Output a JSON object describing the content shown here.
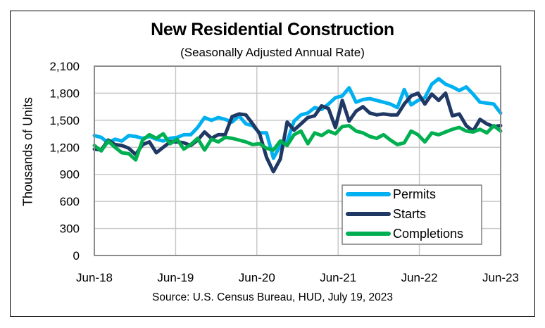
{
  "chart_data": {
    "type": "line",
    "title": "New Residential Construction",
    "subtitle": "(Seasonally Adjusted Annual Rate)",
    "xlabel": "",
    "ylabel": "Thousands of Units",
    "source": "Source:  U.S. Census Bureau, HUD, July 19, 2023",
    "ylim": [
      0,
      2100
    ],
    "yticks": [
      0,
      300,
      600,
      900,
      1200,
      1500,
      1800,
      2100
    ],
    "ytick_labels": [
      "0",
      "300",
      "600",
      "900",
      "1,200",
      "1,500",
      "1,800",
      "2,100"
    ],
    "xtick_labels": [
      "Jun-18",
      "Jun-19",
      "Jun-20",
      "Jun-21",
      "Jun-22",
      "Jun-23"
    ],
    "x_start": "Jun-2018",
    "x_end": "Jun-2023",
    "frequency": "monthly",
    "grid": true,
    "legend_position": "bottom-right",
    "series": [
      {
        "name": "Permits",
        "color": "#00B0F0",
        "values": [
          1330,
          1310,
          1250,
          1290,
          1270,
          1330,
          1320,
          1300,
          1320,
          1290,
          1270,
          1300,
          1310,
          1340,
          1340,
          1420,
          1530,
          1500,
          1530,
          1510,
          1480,
          1550,
          1460,
          1440,
          1360,
          1360,
          1080,
          1220,
          1260,
          1490,
          1560,
          1580,
          1640,
          1620,
          1680,
          1750,
          1770,
          1860,
          1700,
          1730,
          1740,
          1720,
          1700,
          1680,
          1640,
          1840,
          1670,
          1720,
          1750,
          1900,
          1960,
          1900,
          1870,
          1830,
          1870,
          1790,
          1700,
          1690,
          1680,
          1580
        ]
      },
      {
        "name": "Starts",
        "color": "#203864",
        "values": [
          1180,
          1170,
          1280,
          1230,
          1220,
          1190,
          1120,
          1230,
          1260,
          1140,
          1200,
          1260,
          1260,
          1250,
          1220,
          1280,
          1370,
          1300,
          1340,
          1340,
          1540,
          1570,
          1560,
          1460,
          1350,
          1090,
          930,
          1070,
          1480,
          1390,
          1460,
          1530,
          1550,
          1660,
          1630,
          1420,
          1720,
          1490,
          1600,
          1650,
          1580,
          1560,
          1570,
          1560,
          1560,
          1680,
          1770,
          1800,
          1680,
          1790,
          1720,
          1800,
          1550,
          1570,
          1440,
          1380,
          1510,
          1460,
          1430,
          1440
        ]
      },
      {
        "name": "Completions",
        "color": "#00B050",
        "values": [
          1220,
          1160,
          1270,
          1200,
          1140,
          1130,
          1060,
          1280,
          1340,
          1300,
          1350,
          1240,
          1290,
          1180,
          1230,
          1300,
          1170,
          1290,
          1260,
          1310,
          1300,
          1280,
          1260,
          1230,
          1240,
          1190,
          1170,
          1270,
          1220,
          1340,
          1380,
          1240,
          1360,
          1330,
          1380,
          1350,
          1430,
          1440,
          1380,
          1360,
          1320,
          1300,
          1340,
          1280,
          1230,
          1250,
          1380,
          1340,
          1260,
          1360,
          1340,
          1370,
          1400,
          1420,
          1380,
          1370,
          1400,
          1360,
          1440,
          1380
        ]
      }
    ]
  }
}
